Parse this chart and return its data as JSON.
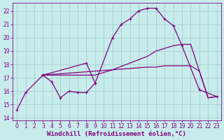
{
  "background_color": "#c8ecec",
  "line_color": "#800080",
  "grid_color": "#a0c8c8",
  "xlabel": "Windchill (Refroidissement éolien,°C)",
  "xlabel_fontsize": 6.5,
  "tick_fontsize": 5.5,
  "xlim": [
    -0.5,
    23.5
  ],
  "ylim": [
    13.8,
    22.6
  ],
  "yticks": [
    14,
    15,
    16,
    17,
    18,
    19,
    20,
    21,
    22
  ],
  "xticks": [
    0,
    1,
    2,
    3,
    4,
    5,
    6,
    7,
    8,
    9,
    10,
    11,
    12,
    13,
    14,
    15,
    16,
    17,
    18,
    19,
    20,
    21,
    22,
    23
  ],
  "line1_x": [
    0,
    1,
    3,
    4,
    5,
    6,
    7,
    8,
    9
  ],
  "line1_y": [
    14.6,
    15.9,
    17.2,
    16.7,
    15.5,
    16.0,
    15.9,
    15.9,
    16.6
  ],
  "line2_x": [
    3,
    8,
    9,
    11,
    12,
    13,
    14,
    15,
    16,
    17,
    18,
    19,
    21,
    23
  ],
  "line2_y": [
    17.2,
    18.1,
    16.6,
    20.0,
    21.0,
    21.4,
    22.0,
    22.2,
    22.2,
    21.4,
    20.9,
    19.4,
    16.1,
    15.6
  ],
  "line3_x": [
    3,
    5,
    7,
    9,
    11,
    13,
    15,
    16,
    17,
    18,
    19,
    20,
    21,
    22,
    23
  ],
  "line3_y": [
    17.2,
    17.3,
    17.4,
    17.5,
    17.6,
    17.7,
    17.8,
    17.8,
    17.9,
    17.9,
    17.9,
    17.9,
    17.5,
    15.5,
    15.6
  ],
  "line4_x": [
    3,
    9,
    11,
    13,
    15,
    16,
    17,
    18,
    19,
    20,
    21,
    22,
    23
  ],
  "line4_y": [
    17.2,
    17.2,
    17.6,
    18.1,
    18.6,
    19.0,
    19.2,
    19.4,
    19.5,
    19.5,
    17.5,
    15.5,
    15.6
  ]
}
